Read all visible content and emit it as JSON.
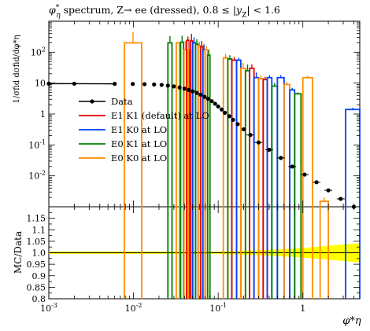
{
  "chart_data": {
    "type": "line",
    "title": "φ*η spectrum, Z→ ee (dressed), 0.8 ≤ |yZ| < 1.6",
    "ylabel_top": "1/σfid dσfid/dφ*η",
    "ylabel_bottom": "MC/Data",
    "xlabel": "φ*η",
    "xscale": "log",
    "top_yscale": "log",
    "xlim": [
      0.001,
      4.7
    ],
    "top_ylim": [
      0.001,
      1000
    ],
    "ratio_ylim": [
      0.8,
      1.2
    ],
    "top_yticks": [
      "10^-2",
      "10^-1",
      "1",
      "10",
      "10^2"
    ],
    "x_ticks": [
      "10^-3",
      "10^-2",
      "10^-1",
      "1"
    ],
    "ratio_yticks": [
      "0.8",
      "0.85",
      "0.9",
      "0.95",
      "1.0",
      "1.05",
      "1.1",
      "1.15"
    ],
    "legend": {
      "position": "center-left",
      "entries": [
        "Data",
        "E1 K1 (default) at LO",
        "E1 K0 at LO",
        "E0 K1 at LO",
        "E0 K0 at LO"
      ]
    },
    "series": [
      {
        "name": "Data",
        "color": "#000000",
        "style": "points",
        "x": [
          0.001,
          0.002,
          0.006,
          0.0098,
          0.0135,
          0.0175,
          0.0215,
          0.0255,
          0.03,
          0.035,
          0.04,
          0.045,
          0.05,
          0.056,
          0.062,
          0.069,
          0.076,
          0.084,
          0.092,
          0.1,
          0.11,
          0.12,
          0.135,
          0.15,
          0.17,
          0.2,
          0.24,
          0.3,
          0.4,
          0.55,
          0.75,
          1.05,
          1.45,
          2.0,
          2.8,
          4.0
        ],
        "y": [
          9.6,
          9.55,
          9.45,
          9.35,
          9.2,
          9.0,
          8.7,
          8.3,
          7.8,
          7.2,
          6.6,
          6.0,
          5.4,
          4.8,
          4.2,
          3.6,
          3.1,
          2.6,
          2.15,
          1.75,
          1.4,
          1.1,
          0.85,
          0.65,
          0.47,
          0.32,
          0.21,
          0.12,
          0.07,
          0.038,
          0.02,
          0.011,
          0.0062,
          0.0034,
          0.0018,
          0.001
        ],
        "ratio_band": [
          0.005,
          0.005,
          0.005,
          0.005,
          0.005,
          0.005,
          0.005,
          0.005,
          0.005,
          0.005,
          0.005,
          0.005,
          0.005,
          0.005,
          0.005,
          0.005,
          0.005,
          0.005,
          0.005,
          0.005,
          0.006,
          0.006,
          0.007,
          0.007,
          0.008,
          0.009,
          0.01,
          0.011,
          0.013,
          0.015,
          0.018,
          0.022,
          0.026,
          0.03,
          0.035,
          0.04
        ]
      }
    ],
    "mc_bars": [
      {
        "name": "E0 K0 at LO",
        "color": "#ff8c00",
        "x": [
          0.0078,
          0.0125
        ],
        "y": 200,
        "err_hi": 450,
        "err_lo": 0
      },
      {
        "name": "E0 K1 at LO",
        "color": "#008000",
        "x": [
          0.0255,
          0.0285
        ],
        "y": 200,
        "err_hi": 330,
        "err_lo": 0
      },
      {
        "name": "E0 K0 at LO",
        "color": "#ff8c00",
        "x": [
          0.032,
          0.035
        ],
        "y": 200,
        "err_hi": 200,
        "err_lo": 0
      },
      {
        "name": "E0 K1 at LO",
        "color": "#008000",
        "x": [
          0.036,
          0.039
        ],
        "y": 210,
        "err_hi": 340,
        "err_lo": 0
      },
      {
        "name": "E0 K0 at LO",
        "color": "#ff8c00",
        "x": [
          0.0395,
          0.0425
        ],
        "y": 120,
        "err_hi": 230,
        "err_lo": 0
      },
      {
        "name": "E1 K1 (default) at LO",
        "color": "#e00000",
        "x": [
          0.0425,
          0.0455
        ],
        "y": 240,
        "err_hi": 320,
        "err_lo": 0
      },
      {
        "name": "E0 K0 at LO",
        "color": "#ff8c00",
        "x": [
          0.0445,
          0.0475
        ],
        "y": 120,
        "err_hi": 260,
        "err_lo": 0
      },
      {
        "name": "E1 K1 (default) at LO",
        "color": "#e00000",
        "x": [
          0.047,
          0.05
        ],
        "y": 230,
        "err_hi": 390,
        "err_lo": 0
      },
      {
        "name": "E1 K0 at LO",
        "color": "#0040ff",
        "x": [
          0.05,
          0.054
        ],
        "y": 200,
        "err_hi": 300,
        "err_lo": 0
      },
      {
        "name": "E0 K1 at LO",
        "color": "#008000",
        "x": [
          0.054,
          0.058
        ],
        "y": 180,
        "err_hi": 260,
        "err_lo": 0
      },
      {
        "name": "E0 K0 at LO",
        "color": "#ff8c00",
        "x": [
          0.058,
          0.062
        ],
        "y": 160,
        "err_hi": 220,
        "err_lo": 0
      },
      {
        "name": "E1 K1 (default) at LO",
        "color": "#e00000",
        "x": [
          0.062,
          0.066
        ],
        "y": 150,
        "err_hi": 230,
        "err_lo": 0
      },
      {
        "name": "E1 K0 at LO",
        "color": "#0040ff",
        "x": [
          0.066,
          0.07
        ],
        "y": 120,
        "err_hi": 180,
        "err_lo": 0
      },
      {
        "name": "E0 K0 at LO",
        "color": "#ff8c00",
        "x": [
          0.07,
          0.075
        ],
        "y": 120,
        "err_hi": 160,
        "err_lo": 0
      },
      {
        "name": "E0 K1 at LO",
        "color": "#008000",
        "x": [
          0.075,
          0.08
        ],
        "y": 80,
        "err_hi": 120,
        "err_lo": 0
      },
      {
        "name": "E0 K0 at LO",
        "color": "#ff8c00",
        "x": [
          0.115,
          0.13
        ],
        "y": 65,
        "err_hi": 90,
        "err_lo": 0
      },
      {
        "name": "E0 K1 at LO",
        "color": "#008000",
        "x": [
          0.13,
          0.145
        ],
        "y": 60,
        "err_hi": 80,
        "err_lo": 0
      },
      {
        "name": "E1 K1 (default) at LO",
        "color": "#e00000",
        "x": [
          0.145,
          0.165
        ],
        "y": 55,
        "err_hi": 70,
        "err_lo": 0
      },
      {
        "name": "E1 K0 at LO",
        "color": "#0040ff",
        "x": [
          0.165,
          0.185
        ],
        "y": 55,
        "err_hi": 65,
        "err_lo": 0
      },
      {
        "name": "E0 K0 at LO",
        "color": "#ff8c00",
        "x": [
          0.185,
          0.21
        ],
        "y": 30,
        "err_hi": 45,
        "err_lo": 0
      },
      {
        "name": "E0 K1 at LO",
        "color": "#008000",
        "x": [
          0.21,
          0.235
        ],
        "y": 25,
        "err_hi": 40,
        "err_lo": 0
      },
      {
        "name": "E1 K1 (default) at LO",
        "color": "#e00000",
        "x": [
          0.235,
          0.265
        ],
        "y": 30,
        "err_hi": 40,
        "err_lo": 0
      },
      {
        "name": "E1 K0 at LO",
        "color": "#0040ff",
        "x": [
          0.265,
          0.3
        ],
        "y": 15,
        "err_hi": 22,
        "err_lo": 0
      },
      {
        "name": "E0 K0 at LO",
        "color": "#ff8c00",
        "x": [
          0.3,
          0.34
        ],
        "y": 14,
        "err_hi": 18,
        "err_lo": 0
      },
      {
        "name": "E1 K1 (default) at LO",
        "color": "#e00000",
        "x": [
          0.34,
          0.38
        ],
        "y": 13,
        "err_hi": 16,
        "err_lo": 0
      },
      {
        "name": "E1 K0 at LO",
        "color": "#0040ff",
        "x": [
          0.38,
          0.43
        ],
        "y": 15,
        "err_hi": 18,
        "err_lo": 0
      },
      {
        "name": "E0 K1 at LO",
        "color": "#008000",
        "x": [
          0.43,
          0.5
        ],
        "y": 8,
        "err_hi": 10,
        "err_lo": 0
      },
      {
        "name": "E1 K0 at LO",
        "color": "#0040ff",
        "x": [
          0.5,
          0.6
        ],
        "y": 15,
        "err_hi": 18,
        "err_lo": 0
      },
      {
        "name": "E0 K0 at LO",
        "color": "#ff8c00",
        "x": [
          0.6,
          0.7
        ],
        "y": 9,
        "err_hi": 11,
        "err_lo": 0
      },
      {
        "name": "E1 K0 at LO",
        "color": "#0040ff",
        "x": [
          0.7,
          0.8
        ],
        "y": 6,
        "err_hi": 7,
        "err_lo": 0
      },
      {
        "name": "E0 K1 at LO",
        "color": "#008000",
        "x": [
          0.8,
          0.95
        ],
        "y": 4.5,
        "err_hi": 5,
        "err_lo": 0
      },
      {
        "name": "E0 K0 at LO",
        "color": "#ff8c00",
        "x": [
          1.0,
          1.3
        ],
        "y": 15,
        "err_hi": 17,
        "err_lo": 0
      },
      {
        "name": "E0 K0 at LO",
        "color": "#ff8c00",
        "x": [
          1.6,
          2.0
        ],
        "y": 0.0015,
        "err_hi": 0.002,
        "err_lo": 0
      },
      {
        "name": "E1 K0 at LO",
        "color": "#0040ff",
        "x": [
          3.2,
          4.7
        ],
        "y": 1.4,
        "err_hi": 1.6,
        "err_lo": 0
      }
    ]
  }
}
